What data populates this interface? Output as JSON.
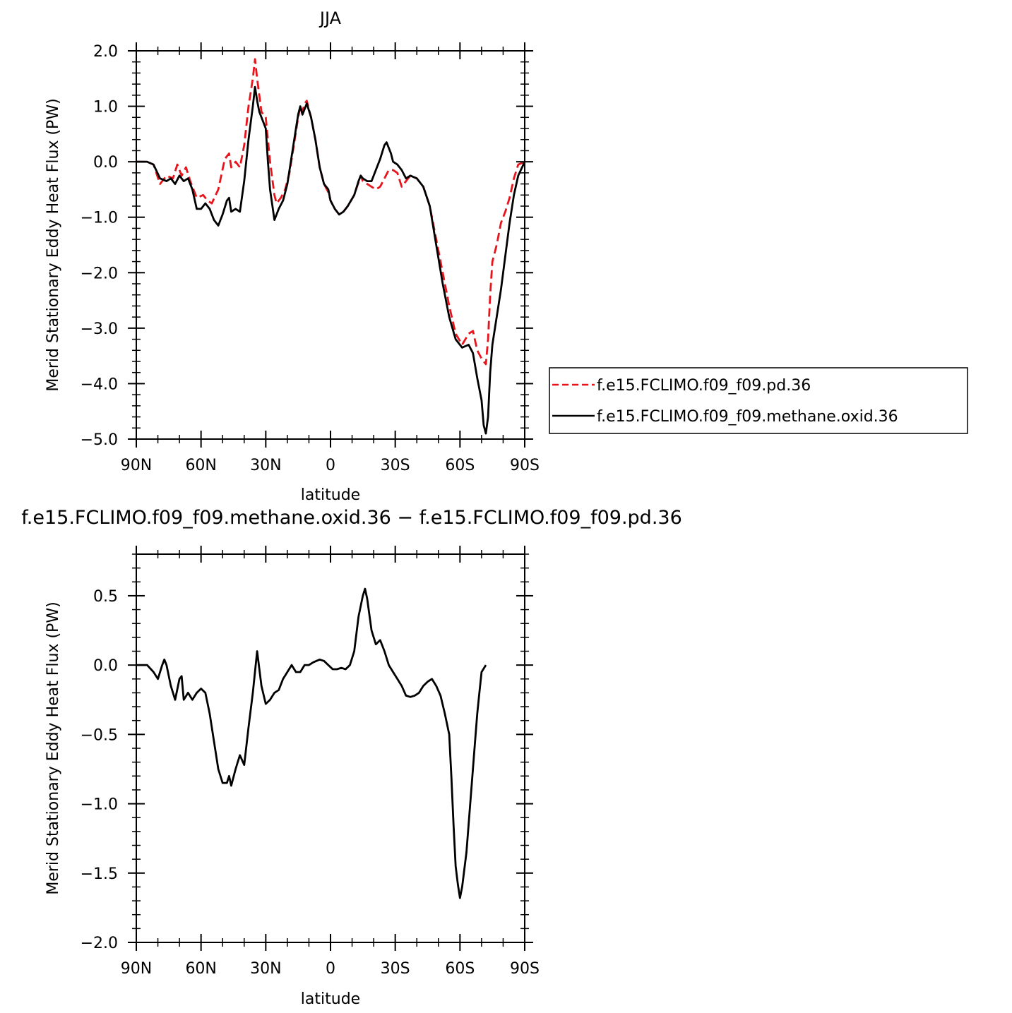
{
  "chart_data": [
    {
      "type": "line",
      "title": "JJA",
      "xlabel": "latitude",
      "ylabel": "Merid Stationary Eddy Heat Flux (PW)",
      "xlim": [
        90,
        -90
      ],
      "ylim": [
        -5.0,
        2.0
      ],
      "xticks": [
        90,
        60,
        30,
        0,
        -30,
        -60,
        -90
      ],
      "xtick_labels": [
        "90N",
        "60N",
        "30N",
        "0",
        "30S",
        "60S",
        "90S"
      ],
      "yticks": [
        2.0,
        1.0,
        0.0,
        -1.0,
        -2.0,
        -3.0,
        -4.0,
        -5.0
      ],
      "ytick_labels": [
        "2.0",
        "1.0",
        "0.0",
        "−1.0",
        "−2.0",
        "−3.0",
        "−4.0",
        "−5.0"
      ],
      "legend_position": "right",
      "series": [
        {
          "name": "f.e15.FCLIMO.f09_f09.pd.36",
          "color": "#e8141c",
          "dash": "dashed",
          "points": [
            [
              90,
              0
            ],
            [
              85,
              0
            ],
            [
              82,
              -0.05
            ],
            [
              79,
              -0.4
            ],
            [
              76,
              -0.25
            ],
            [
              73,
              -0.3
            ],
            [
              71,
              -0.05
            ],
            [
              69,
              -0.25
            ],
            [
              67,
              -0.1
            ],
            [
              65,
              -0.35
            ],
            [
              62,
              -0.65
            ],
            [
              59,
              -0.6
            ],
            [
              57,
              -0.7
            ],
            [
              55,
              -0.75
            ],
            [
              52,
              -0.5
            ],
            [
              49,
              0.05
            ],
            [
              47,
              0.15
            ],
            [
              46,
              -0.1
            ],
            [
              44,
              0.0
            ],
            [
              42,
              -0.1
            ],
            [
              40,
              0.3
            ],
            [
              38,
              1.0
            ],
            [
              36,
              1.5
            ],
            [
              35,
              1.85
            ],
            [
              34,
              1.5
            ],
            [
              32,
              0.9
            ],
            [
              30,
              0.8
            ],
            [
              28,
              0.0
            ],
            [
              26,
              -0.6
            ],
            [
              25,
              -0.75
            ],
            [
              23,
              -0.65
            ],
            [
              21,
              -0.5
            ],
            [
              19,
              -0.2
            ],
            [
              17,
              0.3
            ],
            [
              15,
              0.8
            ],
            [
              14,
              1.0
            ],
            [
              13,
              0.9
            ],
            [
              12,
              1.05
            ],
            [
              11,
              1.1
            ],
            [
              9,
              0.8
            ],
            [
              7,
              0.4
            ],
            [
              5,
              -0.1
            ],
            [
              3,
              -0.4
            ],
            [
              1,
              -0.55
            ],
            [
              0,
              -0.7
            ],
            [
              -2,
              -0.85
            ],
            [
              -4,
              -0.95
            ],
            [
              -6,
              -0.9
            ],
            [
              -8,
              -0.8
            ],
            [
              -11,
              -0.6
            ],
            [
              -14,
              -0.25
            ],
            [
              -15,
              -0.35
            ],
            [
              -17,
              -0.4
            ],
            [
              -19,
              -0.45
            ],
            [
              -21,
              -0.5
            ],
            [
              -23,
              -0.45
            ],
            [
              -25,
              -0.3
            ],
            [
              -27,
              -0.15
            ],
            [
              -29,
              -0.15
            ],
            [
              -31,
              -0.2
            ],
            [
              -33,
              -0.45
            ],
            [
              -35,
              -0.35
            ],
            [
              -37,
              -0.25
            ],
            [
              -40,
              -0.3
            ],
            [
              -43,
              -0.45
            ],
            [
              -46,
              -0.8
            ],
            [
              -49,
              -1.4
            ],
            [
              -52,
              -2.0
            ],
            [
              -55,
              -2.6
            ],
            [
              -58,
              -3.1
            ],
            [
              -61,
              -3.3
            ],
            [
              -64,
              -3.1
            ],
            [
              -66,
              -3.05
            ],
            [
              -68,
              -3.4
            ],
            [
              -70,
              -3.55
            ],
            [
              -72,
              -3.65
            ],
            [
              -73,
              -3.2
            ],
            [
              -74,
              -2.4
            ],
            [
              -75,
              -1.8
            ],
            [
              -77,
              -1.5
            ],
            [
              -79,
              -1.1
            ],
            [
              -81,
              -0.9
            ],
            [
              -83,
              -0.65
            ],
            [
              -85,
              -0.3
            ],
            [
              -87,
              -0.05
            ],
            [
              -90,
              0
            ]
          ]
        },
        {
          "name": "f.e15.FCLIMO.f09_f09.methane.oxid.36",
          "color": "#000000",
          "dash": "solid",
          "points": [
            [
              90,
              0
            ],
            [
              85,
              0
            ],
            [
              82,
              -0.05
            ],
            [
              79,
              -0.3
            ],
            [
              76,
              -0.35
            ],
            [
              74,
              -0.3
            ],
            [
              72,
              -0.4
            ],
            [
              70,
              -0.25
            ],
            [
              68,
              -0.35
            ],
            [
              66,
              -0.3
            ],
            [
              64,
              -0.5
            ],
            [
              62,
              -0.85
            ],
            [
              60,
              -0.85
            ],
            [
              58,
              -0.75
            ],
            [
              56,
              -0.85
            ],
            [
              54,
              -1.05
            ],
            [
              52,
              -1.15
            ],
            [
              50,
              -0.95
            ],
            [
              48,
              -0.7
            ],
            [
              47,
              -0.65
            ],
            [
              46,
              -0.9
            ],
            [
              44,
              -0.85
            ],
            [
              42,
              -0.9
            ],
            [
              40,
              -0.35
            ],
            [
              38,
              0.4
            ],
            [
              36,
              1.0
            ],
            [
              35,
              1.35
            ],
            [
              34,
              1.1
            ],
            [
              33,
              0.9
            ],
            [
              31,
              0.7
            ],
            [
              30,
              0.6
            ],
            [
              29,
              0.0
            ],
            [
              28,
              -0.5
            ],
            [
              26,
              -1.05
            ],
            [
              24,
              -0.85
            ],
            [
              22,
              -0.7
            ],
            [
              20,
              -0.4
            ],
            [
              18,
              0.1
            ],
            [
              16,
              0.6
            ],
            [
              15,
              0.85
            ],
            [
              14,
              1.0
            ],
            [
              13,
              0.85
            ],
            [
              11,
              1.05
            ],
            [
              9,
              0.8
            ],
            [
              7,
              0.4
            ],
            [
              5,
              -0.1
            ],
            [
              3,
              -0.4
            ],
            [
              1,
              -0.5
            ],
            [
              0,
              -0.7
            ],
            [
              -2,
              -0.85
            ],
            [
              -4,
              -0.95
            ],
            [
              -6,
              -0.9
            ],
            [
              -8,
              -0.8
            ],
            [
              -11,
              -0.6
            ],
            [
              -13,
              -0.35
            ],
            [
              -14,
              -0.25
            ],
            [
              -15,
              -0.3
            ],
            [
              -17,
              -0.35
            ],
            [
              -19,
              -0.35
            ],
            [
              -21,
              -0.15
            ],
            [
              -23,
              0.05
            ],
            [
              -25,
              0.3
            ],
            [
              -26,
              0.35
            ],
            [
              -28,
              0.15
            ],
            [
              -29,
              0.0
            ],
            [
              -31,
              -0.05
            ],
            [
              -33,
              -0.15
            ],
            [
              -35,
              -0.3
            ],
            [
              -37,
              -0.25
            ],
            [
              -40,
              -0.3
            ],
            [
              -43,
              -0.45
            ],
            [
              -46,
              -0.8
            ],
            [
              -49,
              -1.5
            ],
            [
              -52,
              -2.2
            ],
            [
              -55,
              -2.8
            ],
            [
              -58,
              -3.2
            ],
            [
              -61,
              -3.35
            ],
            [
              -64,
              -3.3
            ],
            [
              -66,
              -3.45
            ],
            [
              -68,
              -3.9
            ],
            [
              -70,
              -4.3
            ],
            [
              -71,
              -4.75
            ],
            [
              -72,
              -4.9
            ],
            [
              -73,
              -4.6
            ],
            [
              -74,
              -3.8
            ],
            [
              -75,
              -3.3
            ],
            [
              -77,
              -2.8
            ],
            [
              -79,
              -2.3
            ],
            [
              -81,
              -1.7
            ],
            [
              -83,
              -1.1
            ],
            [
              -85,
              -0.6
            ],
            [
              -87,
              -0.25
            ],
            [
              -90,
              0
            ]
          ]
        }
      ]
    },
    {
      "type": "line",
      "title": "f.e15.FCLIMO.f09_f09.methane.oxid.36 − f.e15.FCLIMO.f09_f09.pd.36",
      "xlabel": "latitude",
      "ylabel": "Merid Stationary Eddy Heat Flux (PW)",
      "xlim": [
        90,
        -90
      ],
      "ylim": [
        -2.0,
        0.8
      ],
      "xticks": [
        90,
        60,
        30,
        0,
        -30,
        -60,
        -90
      ],
      "xtick_labels": [
        "90N",
        "60N",
        "30N",
        "0",
        "30S",
        "60S",
        "90S"
      ],
      "yticks": [
        0.5,
        0.0,
        -0.5,
        -1.0,
        -1.5,
        -2.0
      ],
      "ytick_labels": [
        "0.5",
        "0.0",
        "−0.5",
        "−1.0",
        "−1.5",
        "−2.0"
      ],
      "series": [
        {
          "color": "#000000",
          "dash": "solid",
          "points": [
            [
              90,
              0
            ],
            [
              85,
              0
            ],
            [
              82,
              -0.05
            ],
            [
              80,
              -0.1
            ],
            [
              78,
              0.0
            ],
            [
              77,
              0.04
            ],
            [
              76,
              0.0
            ],
            [
              74,
              -0.15
            ],
            [
              72,
              -0.25
            ],
            [
              70,
              -0.1
            ],
            [
              69,
              -0.08
            ],
            [
              68,
              -0.25
            ],
            [
              66,
              -0.2
            ],
            [
              64,
              -0.25
            ],
            [
              62,
              -0.2
            ],
            [
              60,
              -0.17
            ],
            [
              58,
              -0.2
            ],
            [
              56,
              -0.35
            ],
            [
              54,
              -0.55
            ],
            [
              52,
              -0.75
            ],
            [
              50,
              -0.85
            ],
            [
              48,
              -0.85
            ],
            [
              47,
              -0.8
            ],
            [
              46,
              -0.87
            ],
            [
              44,
              -0.75
            ],
            [
              43,
              -0.7
            ],
            [
              42,
              -0.65
            ],
            [
              40,
              -0.72
            ],
            [
              38,
              -0.45
            ],
            [
              36,
              -0.2
            ],
            [
              34,
              0.1
            ],
            [
              32,
              -0.15
            ],
            [
              30,
              -0.28
            ],
            [
              28,
              -0.25
            ],
            [
              26,
              -0.2
            ],
            [
              24,
              -0.18
            ],
            [
              22,
              -0.1
            ],
            [
              20,
              -0.05
            ],
            [
              18,
              0.0
            ],
            [
              16,
              -0.05
            ],
            [
              14,
              -0.05
            ],
            [
              12,
              0.0
            ],
            [
              10,
              0.0
            ],
            [
              8,
              0.02
            ],
            [
              5,
              0.04
            ],
            [
              3,
              0.03
            ],
            [
              1,
              0.0
            ],
            [
              -1,
              -0.03
            ],
            [
              -3,
              -0.03
            ],
            [
              -5,
              -0.02
            ],
            [
              -7,
              -0.03
            ],
            [
              -9,
              0.0
            ],
            [
              -11,
              0.1
            ],
            [
              -13,
              0.35
            ],
            [
              -15,
              0.5
            ],
            [
              -16,
              0.55
            ],
            [
              -17,
              0.48
            ],
            [
              -19,
              0.25
            ],
            [
              -21,
              0.15
            ],
            [
              -23,
              0.18
            ],
            [
              -25,
              0.1
            ],
            [
              -27,
              0.0
            ],
            [
              -29,
              -0.05
            ],
            [
              -31,
              -0.1
            ],
            [
              -33,
              -0.15
            ],
            [
              -35,
              -0.22
            ],
            [
              -37,
              -0.23
            ],
            [
              -39,
              -0.22
            ],
            [
              -41,
              -0.2
            ],
            [
              -43,
              -0.15
            ],
            [
              -45,
              -0.12
            ],
            [
              -47,
              -0.1
            ],
            [
              -49,
              -0.15
            ],
            [
              -51,
              -0.22
            ],
            [
              -53,
              -0.35
            ],
            [
              -55,
              -0.5
            ],
            [
              -56,
              -0.8
            ],
            [
              -57,
              -1.15
            ],
            [
              -58,
              -1.45
            ],
            [
              -59,
              -1.58
            ],
            [
              -60,
              -1.68
            ],
            [
              -61,
              -1.6
            ],
            [
              -63,
              -1.35
            ],
            [
              -65,
              -0.95
            ],
            [
              -67,
              -0.55
            ],
            [
              -68,
              -0.35
            ],
            [
              -69,
              -0.2
            ],
            [
              -70,
              -0.05
            ],
            [
              -72,
              0.0
            ]
          ]
        }
      ]
    }
  ]
}
